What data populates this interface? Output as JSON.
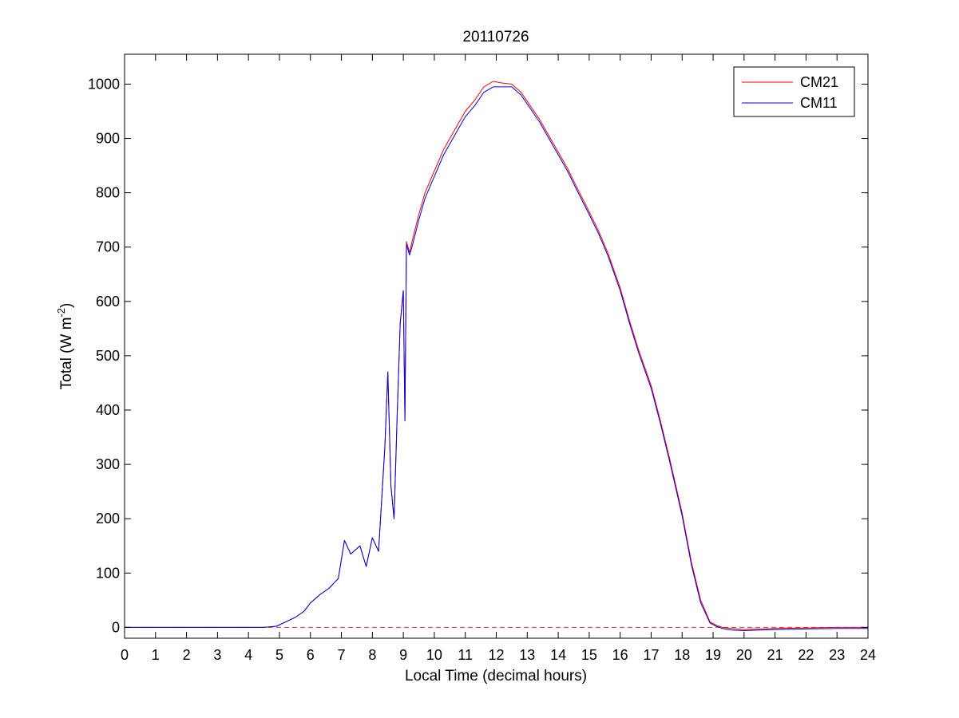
{
  "chart_data": {
    "type": "line",
    "title": "20110726",
    "xlabel": "Local Time (decimal hours)",
    "ylabel_main": "Total (W m",
    "ylabel_sup": "-2",
    "ylabel_end": ")",
    "xlim": [
      0,
      24
    ],
    "ylim": [
      -20,
      1055
    ],
    "xticks": [
      0,
      1,
      2,
      3,
      4,
      5,
      6,
      7,
      8,
      9,
      10,
      11,
      12,
      13,
      14,
      15,
      16,
      17,
      18,
      19,
      20,
      21,
      22,
      23,
      24
    ],
    "xtick_labels": [
      "0",
      "1",
      "2",
      "3",
      "4",
      "5",
      "6",
      "7",
      "8",
      "9",
      "10",
      "11",
      "12",
      "13",
      "14",
      "15",
      "16",
      "17",
      "18",
      "19",
      "20",
      "21",
      "22",
      "23",
      "24"
    ],
    "yticks": [
      0,
      100,
      200,
      300,
      400,
      500,
      600,
      700,
      800,
      900,
      1000
    ],
    "ytick_labels": [
      "0",
      "100",
      "200",
      "300",
      "400",
      "500",
      "600",
      "700",
      "800",
      "900",
      "1000"
    ],
    "grid": false,
    "legend_position": "top-right",
    "reference_line": {
      "y": 0,
      "color": "#c04040",
      "style": "dashed"
    },
    "series": [
      {
        "name": "CM21",
        "color": "#ff0000",
        "x": [
          0,
          4.5,
          4.9,
          5.2,
          5.5,
          5.8,
          6.0,
          6.3,
          6.6,
          6.9,
          7.1,
          7.3,
          7.6,
          7.8,
          8.0,
          8.2,
          8.4,
          8.5,
          8.6,
          8.7,
          8.8,
          8.9,
          9.0,
          9.05,
          9.1,
          9.2,
          9.3,
          9.5,
          9.7,
          10.0,
          10.3,
          10.6,
          11.0,
          11.3,
          11.6,
          11.9,
          12.2,
          12.5,
          12.8,
          13.1,
          13.4,
          13.7,
          14.0,
          14.3,
          14.6,
          15.0,
          15.3,
          15.6,
          16.0,
          16.3,
          16.6,
          17.0,
          17.3,
          17.6,
          18.0,
          18.3,
          18.6,
          18.9,
          19.1,
          19.3,
          19.6,
          20.0,
          20.5,
          21.0,
          22.0,
          23.0,
          24.0
        ],
        "y": [
          0,
          0,
          2,
          10,
          18,
          30,
          45,
          60,
          72,
          90,
          160,
          135,
          150,
          112,
          165,
          140,
          330,
          470,
          260,
          200,
          390,
          560,
          620,
          380,
          710,
          690,
          715,
          760,
          800,
          840,
          880,
          910,
          950,
          970,
          995,
          1005,
          1002,
          1000,
          985,
          960,
          935,
          905,
          875,
          845,
          810,
          765,
          730,
          690,
          625,
          565,
          510,
          445,
          380,
          310,
          210,
          120,
          50,
          10,
          4,
          0,
          -2,
          -4,
          -3,
          -2,
          -1,
          0,
          0
        ]
      },
      {
        "name": "CM11",
        "color": "#0000dd",
        "x": [
          0,
          4.5,
          4.9,
          5.2,
          5.5,
          5.8,
          6.0,
          6.3,
          6.6,
          6.9,
          7.1,
          7.3,
          7.6,
          7.8,
          8.0,
          8.2,
          8.4,
          8.5,
          8.6,
          8.7,
          8.8,
          8.9,
          9.0,
          9.05,
          9.1,
          9.2,
          9.3,
          9.5,
          9.7,
          10.0,
          10.3,
          10.6,
          11.0,
          11.3,
          11.6,
          11.9,
          12.2,
          12.5,
          12.8,
          13.1,
          13.4,
          13.7,
          14.0,
          14.3,
          14.6,
          15.0,
          15.3,
          15.6,
          16.0,
          16.3,
          16.6,
          17.0,
          17.3,
          17.6,
          18.0,
          18.3,
          18.6,
          18.9,
          19.1,
          19.3,
          19.6,
          20.0,
          20.5,
          21.0,
          22.0,
          23.0,
          24.0
        ],
        "y": [
          0,
          0,
          2,
          10,
          18,
          30,
          45,
          60,
          72,
          90,
          160,
          135,
          150,
          112,
          165,
          140,
          330,
          470,
          260,
          200,
          390,
          560,
          620,
          380,
          705,
          685,
          705,
          750,
          790,
          830,
          870,
          900,
          940,
          960,
          985,
          995,
          995,
          995,
          980,
          955,
          930,
          900,
          870,
          840,
          805,
          760,
          725,
          685,
          620,
          560,
          505,
          440,
          375,
          305,
          205,
          115,
          45,
          8,
          2,
          -2,
          -5,
          -6,
          -5,
          -4,
          -3,
          -2,
          -2
        ]
      }
    ]
  }
}
